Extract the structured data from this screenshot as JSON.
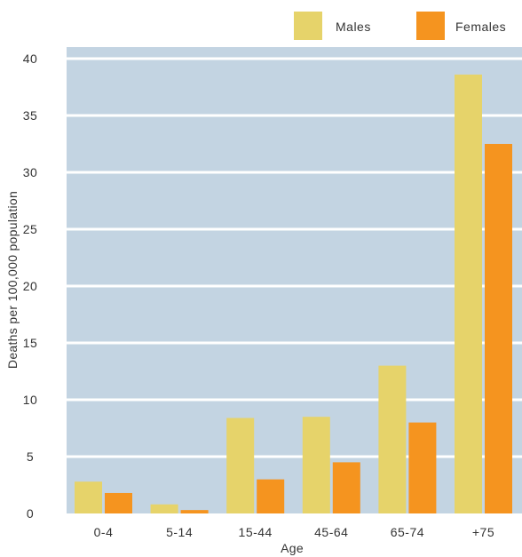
{
  "chart_data": {
    "type": "bar",
    "xlabel": "Age",
    "ylabel": "Deaths per 100,000 population",
    "categories": [
      "0-4",
      "5-14",
      "15-44",
      "45-64",
      "65-74",
      "+75"
    ],
    "series": [
      {
        "name": "Males",
        "color": "#e6d36a",
        "values": [
          2.8,
          0.8,
          8.4,
          8.5,
          13.0,
          38.6
        ]
      },
      {
        "name": "Females",
        "color": "#f5941f",
        "values": [
          1.8,
          0.3,
          3.0,
          4.5,
          8.0,
          32.5
        ]
      }
    ],
    "ylim": [
      0,
      40
    ],
    "yticks": [
      0,
      5,
      10,
      15,
      20,
      25,
      30,
      35,
      40
    ],
    "grid": true,
    "legend_position": "top-right",
    "plot_background": "#c3d4e2",
    "gridline_color": "#ffffff"
  }
}
